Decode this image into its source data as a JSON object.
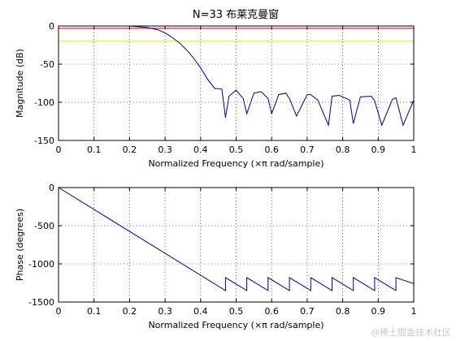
{
  "figure": {
    "title": "N=33 布莱克曼窗",
    "watermark": "@稀土掘金技术社区"
  },
  "chart_data": [
    {
      "type": "line",
      "title": "N=33 布莱克曼窗",
      "xlabel": "Normalized Frequency  (×π rad/sample)",
      "ylabel": "Magnitude (dB)",
      "xlim": [
        0,
        1
      ],
      "ylim": [
        -150,
        0
      ],
      "xticks": [
        "0",
        "0.1",
        "0.2",
        "0.3",
        "0.4",
        "0.5",
        "0.6",
        "0.7",
        "0.8",
        "0.9",
        "1"
      ],
      "yticks": [
        "0",
        "-50",
        "-100",
        "-150"
      ],
      "grid": true,
      "reference_lines": [
        {
          "y": -3,
          "color": "#c00000"
        },
        {
          "y": -20,
          "color": "#e8e800"
        }
      ],
      "series": [
        {
          "color": "#000080",
          "x": [
            0,
            0.05,
            0.1,
            0.15,
            0.2,
            0.25,
            0.28,
            0.3,
            0.32,
            0.34,
            0.36,
            0.38,
            0.4,
            0.42,
            0.44,
            0.45,
            0.46,
            0.47,
            0.48,
            0.5,
            0.52,
            0.53,
            0.55,
            0.57,
            0.59,
            0.6,
            0.62,
            0.64,
            0.65,
            0.67,
            0.7,
            0.71,
            0.73,
            0.76,
            0.77,
            0.79,
            0.82,
            0.83,
            0.85,
            0.88,
            0.89,
            0.91,
            0.94,
            0.95,
            0.97,
            1.0
          ],
          "y": [
            0,
            0,
            0,
            0,
            0,
            -2,
            -5,
            -9,
            -15,
            -22,
            -31,
            -42,
            -55,
            -70,
            -82,
            -82,
            -83,
            -120,
            -92,
            -84,
            -95,
            -115,
            -88,
            -86,
            -95,
            -115,
            -90,
            -88,
            -95,
            -118,
            -90,
            -90,
            -97,
            -130,
            -92,
            -91,
            -97,
            -128,
            -93,
            -92,
            -98,
            -130,
            -96,
            -94,
            -130,
            -97
          ]
        }
      ]
    },
    {
      "type": "line",
      "title": "",
      "xlabel": "Normalized Frequency  (×π rad/sample)",
      "ylabel": "Phase (degrees)",
      "xlim": [
        0,
        1
      ],
      "ylim": [
        -1500,
        0
      ],
      "xticks": [
        "0",
        "0.1",
        "0.2",
        "0.3",
        "0.4",
        "0.5",
        "0.6",
        "0.7",
        "0.8",
        "0.9",
        "1"
      ],
      "yticks": [
        "0",
        "-500",
        "-1000",
        "-1500"
      ],
      "grid": true,
      "series": [
        {
          "color": "#000080",
          "x": [
            0,
            0.47,
            0.47,
            0.53,
            0.53,
            0.59,
            0.59,
            0.65,
            0.65,
            0.71,
            0.71,
            0.77,
            0.77,
            0.83,
            0.83,
            0.89,
            0.89,
            0.95,
            0.95,
            1.0
          ],
          "y": [
            0,
            -1350,
            -1180,
            -1350,
            -1180,
            -1350,
            -1180,
            -1350,
            -1180,
            -1350,
            -1180,
            -1350,
            -1180,
            -1350,
            -1180,
            -1350,
            -1180,
            -1350,
            -1180,
            -1260
          ]
        }
      ]
    }
  ]
}
